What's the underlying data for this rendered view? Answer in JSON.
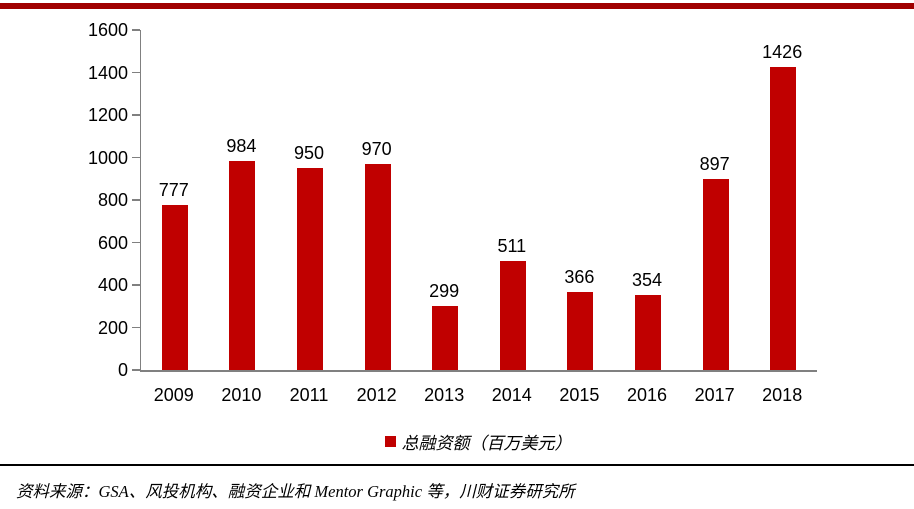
{
  "page": {
    "top_band_color": "#a00000",
    "divider_color": "#000000",
    "source_text": "资料来源：GSA、风投机构、融资企业和 Mentor Graphic 等，川财证券研究所"
  },
  "chart_data": {
    "type": "bar",
    "categories": [
      "2009",
      "2010",
      "2011",
      "2012",
      "2013",
      "2014",
      "2015",
      "2016",
      "2017",
      "2018"
    ],
    "values": [
      777,
      984,
      950,
      970,
      299,
      511,
      366,
      354,
      897,
      1426
    ],
    "series": [
      {
        "name": "总融资额（百万美元）",
        "values": [
          777,
          984,
          950,
          970,
          299,
          511,
          366,
          354,
          897,
          1426
        ]
      }
    ],
    "title": "",
    "xlabel": "",
    "ylabel": "",
    "ylim": [
      0,
      1600
    ],
    "ytick_step": 200,
    "grid": false,
    "value_labels_shown": true,
    "legend_position": "bottom",
    "legend_label": "总融资额（百万美元）",
    "bar_color": "#c00000",
    "axis_color": "#808080",
    "label_color": "#000000"
  }
}
